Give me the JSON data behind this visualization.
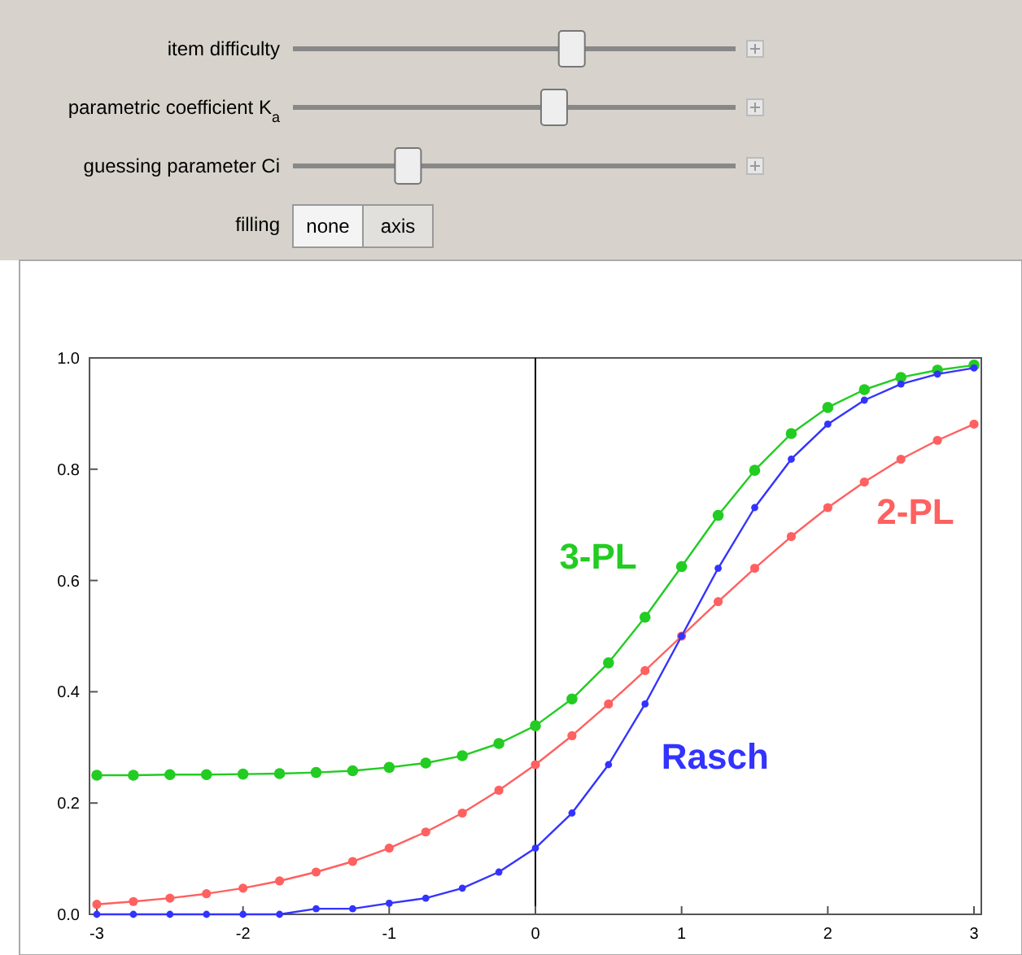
{
  "chart_data": {
    "type": "line",
    "x": [
      -3,
      -2.75,
      -2.5,
      -2.25,
      -2,
      -1.75,
      -1.5,
      -1.25,
      -1,
      -0.75,
      -0.5,
      -0.25,
      0,
      0.25,
      0.5,
      0.75,
      1,
      1.25,
      1.5,
      1.75,
      2,
      2.25,
      2.5,
      2.75,
      3
    ],
    "series": [
      {
        "name": "3-PL",
        "color": "#22cc22",
        "values": [
          0.25,
          0.25,
          0.251,
          0.251,
          0.252,
          0.253,
          0.255,
          0.258,
          0.264,
          0.272,
          0.285,
          0.307,
          0.339,
          0.387,
          0.452,
          0.534,
          0.625,
          0.717,
          0.798,
          0.864,
          0.911,
          0.943,
          0.965,
          0.978,
          0.987
        ]
      },
      {
        "name": "2-PL",
        "color": "#ff6060",
        "values": [
          0.018,
          0.023,
          0.029,
          0.037,
          0.047,
          0.06,
          0.076,
          0.095,
          0.119,
          0.148,
          0.182,
          0.223,
          0.269,
          0.321,
          0.378,
          0.438,
          0.5,
          0.562,
          0.622,
          0.679,
          0.731,
          0.777,
          0.818,
          0.852,
          0.881
        ]
      },
      {
        "name": "Rasch",
        "color": "#3333ff",
        "values": [
          0,
          0,
          0,
          0,
          0,
          0,
          0.01,
          0.01,
          0.02,
          0.029,
          0.047,
          0.076,
          0.119,
          0.182,
          0.269,
          0.378,
          0.5,
          0.622,
          0.731,
          0.818,
          0.881,
          0.924,
          0.953,
          0.971,
          0.982
        ]
      }
    ],
    "marker": "circle",
    "xlim": [
      -3.05,
      3.05
    ],
    "ylim": [
      0,
      1
    ],
    "xticks": [
      -3,
      -2,
      -1,
      0,
      1,
      2,
      3
    ],
    "yticks": [
      {
        "value": 0,
        "label": "0.0"
      },
      0.2,
      0.4,
      0.6,
      0.8,
      {
        "value": 1,
        "label": "1.0"
      }
    ],
    "ref_lines": [
      {
        "axis": "x",
        "value": 0,
        "color": "#000000"
      }
    ],
    "annotations": [
      "item difficulty",
      "parametric coefficient K$_{a}$",
      "guessing parameter Ci",
      "filling",
      "none",
      "axis"
    ]
  }
}
